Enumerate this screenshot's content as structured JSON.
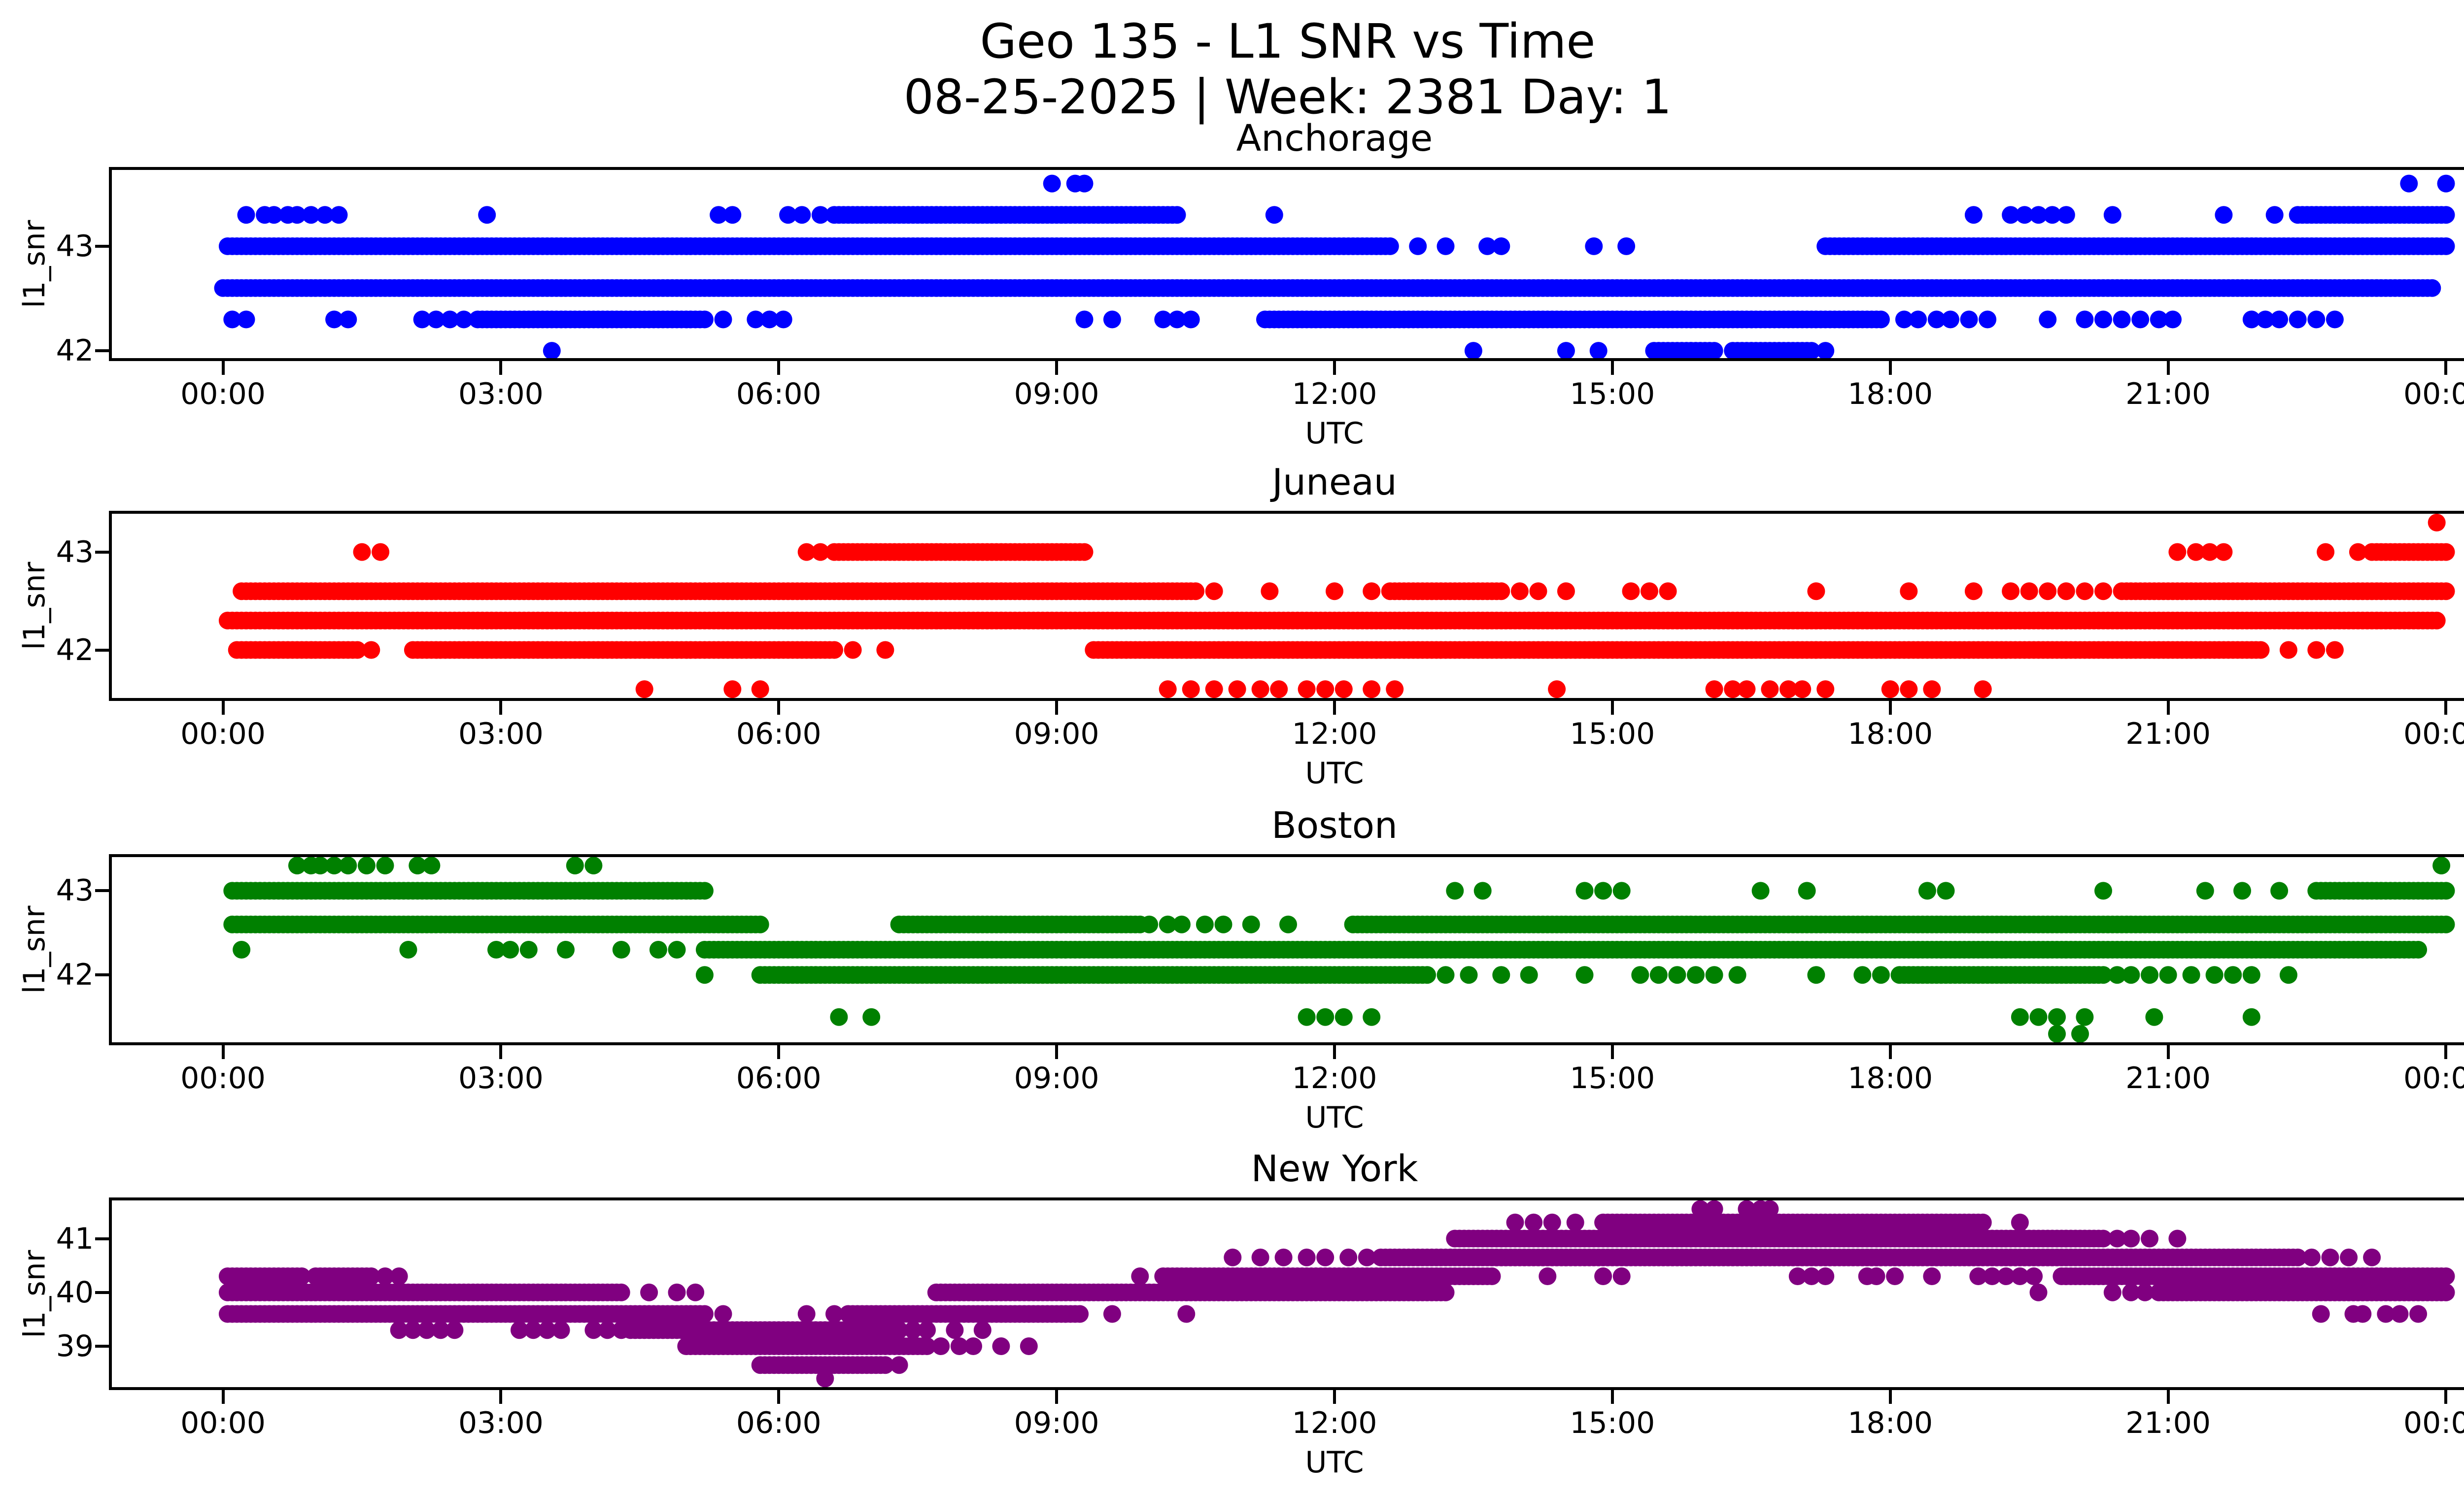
{
  "title": {
    "line1": "Geo 135 - L1 SNR vs Time",
    "line2": "08-25-2025 | Week: 2381 Day: 1"
  },
  "chart_data": [
    {
      "type": "scatter",
      "station": "Anchorage",
      "color": "#0000ff",
      "xlabel": "UTC",
      "ylabel": "l1_snr",
      "xlim": [
        -1.2,
        25.2
      ],
      "ylim": [
        41.93,
        43.73
      ],
      "yticks": [
        42,
        43
      ],
      "xticks": {
        "hours": [
          0,
          3,
          6,
          9,
          12,
          15,
          18,
          21,
          24
        ],
        "labels": [
          "00:00",
          "03:00",
          "06:00",
          "09:00",
          "12:00",
          "15:00",
          "18:00",
          "21:00",
          "00:00"
        ]
      },
      "dense_step_hours": 0.05,
      "levels": [
        {
          "v": 43.6,
          "seg": [],
          "pts": [
            8.95,
            9.2,
            9.3,
            23.6,
            24.0
          ]
        },
        {
          "v": 43.3,
          "seg": [
            [
              6.6,
              10.3
            ],
            [
              22.4,
              24.0
            ]
          ],
          "pts": [
            0.25,
            0.45,
            0.55,
            0.7,
            0.8,
            0.95,
            1.1,
            1.25,
            2.85,
            5.35,
            5.5,
            6.1,
            6.25,
            6.45,
            11.35,
            18.9,
            19.3,
            19.45,
            19.6,
            19.75,
            19.9,
            20.4,
            21.6,
            22.15
          ]
        },
        {
          "v": 43.0,
          "seg": [
            [
              0.05,
              12.6
            ],
            [
              17.3,
              24.0
            ]
          ],
          "pts": [
            12.9,
            13.2,
            13.65,
            13.8,
            14.8,
            15.15
          ]
        },
        {
          "v": 42.6,
          "seg": [
            [
              0.0,
              23.85
            ]
          ],
          "pts": []
        },
        {
          "v": 42.3,
          "seg": [
            [
              2.75,
              5.2
            ],
            [
              11.25,
              17.9
            ]
          ],
          "pts": [
            0.1,
            0.25,
            1.2,
            1.35,
            2.15,
            2.3,
            2.45,
            2.6,
            5.4,
            5.75,
            5.9,
            6.05,
            9.3,
            9.6,
            10.15,
            10.3,
            10.45,
            18.15,
            18.3,
            18.5,
            18.65,
            18.85,
            19.05,
            19.7,
            20.1,
            20.3,
            20.5,
            20.7,
            20.9,
            21.05,
            21.9,
            22.05,
            22.2,
            22.4,
            22.6,
            22.8
          ]
        },
        {
          "v": 42.0,
          "seg": [
            [
              15.45,
              16.1
            ],
            [
              16.3,
              17.15
            ]
          ],
          "pts": [
            3.55,
            13.5,
            14.5,
            14.85,
            17.3
          ]
        }
      ]
    },
    {
      "type": "scatter",
      "station": "Juneau",
      "color": "#ff0000",
      "xlabel": "UTC",
      "ylabel": "l1_snr",
      "xlim": [
        -1.2,
        25.2
      ],
      "ylim": [
        41.51,
        43.39
      ],
      "yticks": [
        42,
        43
      ],
      "xticks": {
        "hours": [
          0,
          3,
          6,
          9,
          12,
          15,
          18,
          21,
          24
        ],
        "labels": [
          "00:00",
          "03:00",
          "06:00",
          "09:00",
          "12:00",
          "15:00",
          "18:00",
          "21:00",
          "00:00"
        ]
      },
      "dense_step_hours": 0.05,
      "levels": [
        {
          "v": 43.3,
          "seg": [],
          "pts": [
            23.9
          ]
        },
        {
          "v": 43.0,
          "seg": [
            [
              6.6,
              9.3
            ],
            [
              23.2,
              24.0
            ]
          ],
          "pts": [
            1.5,
            1.7,
            6.3,
            6.45,
            21.1,
            21.3,
            21.45,
            21.6,
            22.7,
            23.05
          ]
        },
        {
          "v": 42.6,
          "seg": [
            [
              0.2,
              10.5
            ],
            [
              12.6,
              13.8
            ],
            [
              20.5,
              24.0
            ]
          ],
          "pts": [
            10.7,
            11.3,
            12.0,
            12.4,
            14.0,
            14.2,
            14.5,
            15.2,
            15.4,
            15.6,
            17.2,
            18.2,
            18.9,
            19.3,
            19.5,
            19.7,
            19.9,
            20.1,
            20.3
          ]
        },
        {
          "v": 42.3,
          "seg": [
            [
              0.05,
              23.9
            ]
          ],
          "pts": []
        },
        {
          "v": 42.0,
          "seg": [
            [
              0.15,
              1.45
            ],
            [
              2.05,
              6.6
            ],
            [
              9.4,
              22.0
            ]
          ],
          "pts": [
            1.6,
            6.8,
            7.15,
            22.3,
            22.6,
            22.8
          ]
        },
        {
          "v": 41.6,
          "seg": [],
          "pts": [
            4.55,
            5.5,
            5.8,
            10.2,
            10.45,
            10.7,
            10.95,
            11.2,
            11.4,
            11.7,
            11.9,
            12.1,
            12.4,
            12.65,
            14.4,
            16.1,
            16.3,
            16.45,
            16.7,
            16.9,
            17.05,
            17.3,
            18.0,
            18.2,
            18.45,
            19.0
          ]
        }
      ]
    },
    {
      "type": "scatter",
      "station": "Boston",
      "color": "#008000",
      "xlabel": "UTC",
      "ylabel": "l1_snr",
      "xlim": [
        -1.2,
        25.2
      ],
      "ylim": [
        41.2,
        43.4
      ],
      "yticks": [
        42,
        43
      ],
      "xticks": {
        "hours": [
          0,
          3,
          6,
          9,
          12,
          15,
          18,
          21,
          24
        ],
        "labels": [
          "00:00",
          "03:00",
          "06:00",
          "09:00",
          "12:00",
          "15:00",
          "18:00",
          "21:00",
          "00:00"
        ]
      },
      "dense_step_hours": 0.05,
      "levels": [
        {
          "v": 43.3,
          "seg": [],
          "pts": [
            0.8,
            0.95,
            1.05,
            1.2,
            1.35,
            1.55,
            1.75,
            2.1,
            2.25,
            3.8,
            4.0,
            23.95
          ]
        },
        {
          "v": 43.0,
          "seg": [
            [
              0.1,
              5.2
            ],
            [
              22.6,
              24.0
            ]
          ],
          "pts": [
            13.3,
            13.6,
            14.7,
            14.9,
            15.1,
            16.6,
            17.1,
            18.4,
            18.6,
            20.3,
            21.4,
            21.8,
            22.2
          ]
        },
        {
          "v": 42.6,
          "seg": [
            [
              0.1,
              5.8
            ],
            [
              7.3,
              9.9
            ],
            [
              12.2,
              24.0
            ]
          ],
          "pts": [
            10.0,
            10.2,
            10.35,
            10.6,
            10.8,
            11.1,
            11.5
          ]
        },
        {
          "v": 42.3,
          "seg": [
            [
              5.2,
              23.7
            ]
          ],
          "pts": [
            0.2,
            2.0,
            2.95,
            3.1,
            3.3,
            3.7,
            4.3,
            4.7,
            4.9
          ]
        },
        {
          "v": 42.0,
          "seg": [
            [
              5.8,
              13.0
            ],
            [
              18.1,
              20.3
            ]
          ],
          "pts": [
            5.2,
            13.2,
            13.45,
            13.8,
            14.1,
            14.7,
            15.3,
            15.5,
            15.7,
            15.9,
            16.1,
            16.35,
            17.2,
            17.7,
            17.9,
            20.45,
            20.6,
            20.8,
            21.0,
            21.25,
            21.5,
            21.7,
            21.9,
            22.3
          ]
        },
        {
          "v": 41.5,
          "seg": [],
          "pts": [
            6.65,
            7.0,
            11.7,
            11.9,
            12.1,
            12.4,
            19.4,
            19.6,
            19.8,
            20.1,
            20.85,
            21.9
          ]
        },
        {
          "v": 41.3,
          "seg": [],
          "pts": [
            19.8,
            20.05
          ]
        }
      ]
    },
    {
      "type": "scatter",
      "station": "New York",
      "color": "#800080",
      "xlabel": "UTC",
      "ylabel": "l1_snr",
      "xlim": [
        -1.2,
        25.2
      ],
      "ylim": [
        38.24,
        41.71
      ],
      "yticks": [
        39,
        40,
        41
      ],
      "xticks": {
        "hours": [
          0,
          3,
          6,
          9,
          12,
          15,
          18,
          21,
          24
        ],
        "labels": [
          "00:00",
          "03:00",
          "06:00",
          "09:00",
          "12:00",
          "15:00",
          "18:00",
          "21:00",
          "00:00"
        ]
      },
      "dense_step_hours": 0.05,
      "levels": [
        {
          "v": 41.55,
          "seg": [],
          "pts": [
            15.95,
            16.1,
            16.45,
            16.6,
            16.7
          ]
        },
        {
          "v": 41.3,
          "seg": [
            [
              14.9,
              19.0
            ]
          ],
          "pts": [
            13.95,
            14.15,
            14.35,
            14.6,
            19.4
          ]
        },
        {
          "v": 41.0,
          "seg": [
            [
              13.3,
              20.3
            ]
          ],
          "pts": [
            20.45,
            20.6,
            20.8,
            21.1
          ]
        },
        {
          "v": 40.65,
          "seg": [
            [
              12.5,
              22.4
            ]
          ],
          "pts": [
            10.9,
            11.2,
            11.45,
            11.7,
            11.9,
            12.15,
            12.35,
            22.55,
            22.75,
            22.95,
            23.2
          ]
        },
        {
          "v": 40.3,
          "seg": [
            [
              0.05,
              0.85
            ],
            [
              1.0,
              1.6
            ],
            [
              10.15,
              13.7
            ],
            [
              19.85,
              24.0
            ]
          ],
          "pts": [
            1.75,
            1.9,
            9.9,
            14.3,
            14.9,
            15.1,
            17.0,
            17.15,
            17.3,
            17.75,
            17.85,
            18.05,
            18.45,
            18.95,
            19.1,
            19.25,
            19.4,
            19.55
          ]
        },
        {
          "v": 40.0,
          "seg": [
            [
              0.05,
              4.3
            ],
            [
              7.7,
              13.2
            ],
            [
              20.9,
              24.0
            ]
          ],
          "pts": [
            4.6,
            4.9,
            5.1,
            19.6,
            20.4,
            20.6,
            20.75
          ]
        },
        {
          "v": 39.6,
          "seg": [
            [
              0.05,
              5.2
            ],
            [
              6.8,
              9.25
            ]
          ],
          "pts": [
            5.4,
            6.3,
            6.6,
            6.75,
            9.6,
            10.4,
            22.65,
            23.0,
            23.1,
            23.35,
            23.5,
            23.7
          ]
        },
        {
          "v": 39.3,
          "seg": [
            [
              4.4,
              7.3
            ]
          ],
          "pts": [
            1.9,
            2.05,
            2.2,
            2.35,
            2.5,
            3.2,
            3.35,
            3.5,
            3.65,
            4.0,
            4.15,
            4.3,
            7.45,
            7.6,
            7.9,
            8.2
          ]
        },
        {
          "v": 39.0,
          "seg": [
            [
              5.0,
              7.6
            ]
          ],
          "pts": [
            7.75,
            7.95,
            8.1,
            8.4,
            8.7
          ]
        },
        {
          "v": 38.65,
          "seg": [
            [
              5.8,
              7.15
            ]
          ],
          "pts": [
            7.3
          ]
        },
        {
          "v": 38.4,
          "seg": [],
          "pts": [
            6.5
          ]
        }
      ]
    }
  ]
}
